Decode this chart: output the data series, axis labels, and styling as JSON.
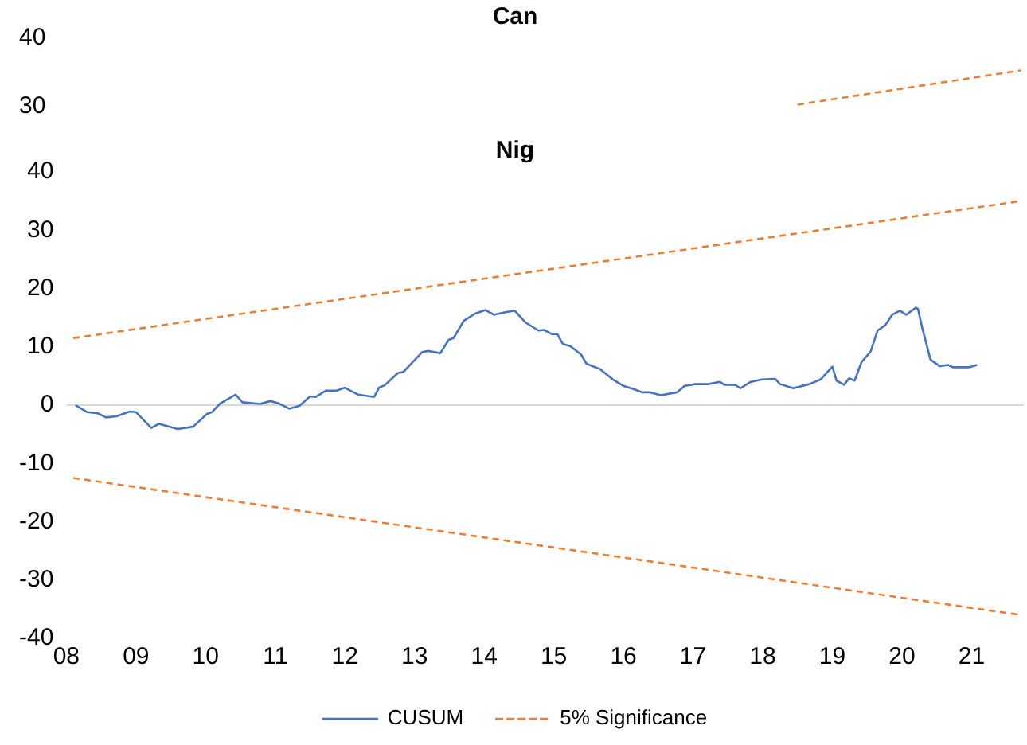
{
  "chart_data": [
    {
      "type": "line",
      "title": "Can",
      "xlim": [
        2008.0,
        2021.75
      ],
      "ylim": [
        30,
        40
      ],
      "yticks": [
        30,
        40
      ],
      "tick_labels": "y",
      "grid": false,
      "legend": false,
      "marker": "none",
      "series": [
        {
          "color": "#ed7d31",
          "line_style": "dashed",
          "x": [
            2018.53,
            2021.71
          ],
          "values": [
            30.3,
            35.3
          ]
        }
      ]
    },
    {
      "type": "line",
      "title": "Nig",
      "xlim": [
        2008.0,
        2021.75
      ],
      "ylim": [
        -40,
        40
      ],
      "yticks": [
        -40,
        -30,
        -20,
        -10,
        0,
        10,
        20,
        30,
        40
      ],
      "xticks": [
        {
          "value": 2008,
          "label": "08"
        },
        {
          "value": 2009,
          "label": "09"
        },
        {
          "value": 2010,
          "label": "10"
        },
        {
          "value": 2011,
          "label": "11"
        },
        {
          "value": 2012,
          "label": "12"
        },
        {
          "value": 2013,
          "label": "13"
        },
        {
          "value": 2014,
          "label": "14"
        },
        {
          "value": 2015,
          "label": "15"
        },
        {
          "value": 2016,
          "label": "16"
        },
        {
          "value": 2017,
          "label": "17"
        },
        {
          "value": 2018,
          "label": "18"
        },
        {
          "value": 2019,
          "label": "19"
        },
        {
          "value": 2020,
          "label": "20"
        },
        {
          "value": 2021,
          "label": "21"
        }
      ],
      "grid": false,
      "legend": "bottom",
      "marker": "none",
      "ref_lines": [
        {
          "axis": "y",
          "value": 0,
          "color": "#d9d9d9"
        }
      ],
      "series": [
        {
          "name": "CUSUM",
          "color": "#4472c4",
          "line_style": "solid",
          "x": [
            2008.13,
            2008.3,
            2008.45,
            2008.57,
            2008.72,
            2008.91,
            2009.0,
            2009.22,
            2009.33,
            2009.6,
            2009.82,
            2010.02,
            2010.09,
            2010.21,
            2010.43,
            2010.53,
            2010.78,
            2010.93,
            2011.05,
            2011.2,
            2011.35,
            2011.5,
            2011.58,
            2011.73,
            2011.88,
            2012.0,
            2012.19,
            2012.42,
            2012.49,
            2012.57,
            2012.76,
            2012.84,
            2013.11,
            2013.2,
            2013.37,
            2013.49,
            2013.56,
            2013.71,
            2013.87,
            2014.02,
            2014.14,
            2014.29,
            2014.44,
            2014.59,
            2014.78,
            2014.86,
            2014.97,
            2015.05,
            2015.13,
            2015.24,
            2015.39,
            2015.47,
            2015.66,
            2015.85,
            2016.0,
            2016.16,
            2016.27,
            2016.38,
            2016.54,
            2016.77,
            2016.88,
            2017.03,
            2017.22,
            2017.38,
            2017.45,
            2017.6,
            2017.68,
            2017.83,
            2017.99,
            2018.18,
            2018.25,
            2018.44,
            2018.67,
            2018.83,
            2019.0,
            2019.06,
            2019.17,
            2019.24,
            2019.32,
            2019.42,
            2019.55,
            2019.65,
            2019.76,
            2019.86,
            2019.97,
            2020.06,
            2020.2,
            2020.23,
            2020.29,
            2020.41,
            2020.54,
            2020.66,
            2020.73,
            2020.96,
            2021.08
          ],
          "values": [
            0,
            -1.2,
            -1.4,
            -2.1,
            -1.9,
            -1.1,
            -1.2,
            -3.9,
            -3.2,
            -4.1,
            -3.7,
            -1.5,
            -1.2,
            0.3,
            1.8,
            0.5,
            0.2,
            0.7,
            0.3,
            -0.6,
            -0.1,
            1.5,
            1.4,
            2.5,
            2.5,
            3,
            1.8,
            1.4,
            3,
            3.4,
            5.5,
            5.7,
            9.1,
            9.3,
            8.9,
            11.2,
            11.5,
            14.5,
            15.7,
            16.3,
            15.5,
            15.9,
            16.2,
            14.2,
            12.8,
            12.9,
            12.2,
            12.2,
            10.5,
            10.1,
            8.7,
            7.1,
            6.2,
            4.4,
            3.3,
            2.7,
            2.2,
            2.2,
            1.7,
            2.2,
            3.3,
            3.6,
            3.6,
            4,
            3.5,
            3.5,
            2.9,
            4,
            4.4,
            4.5,
            3.6,
            2.9,
            3.6,
            4.4,
            6.6,
            4.2,
            3.5,
            4.6,
            4.2,
            7.4,
            9.2,
            12.8,
            13.7,
            15.5,
            16.2,
            15.5,
            16.7,
            16.5,
            13.3,
            7.8,
            6.7,
            6.9,
            6.5,
            6.5,
            6.9
          ]
        },
        {
          "name": "5% Significance",
          "color": "#ed7d31",
          "line_style": "dashed",
          "x": [
            2008.1,
            2021.71
          ],
          "values": [
            11.5,
            35
          ]
        },
        {
          "color": "#ed7d31",
          "line_style": "dashed",
          "x": [
            2008.1,
            2021.71
          ],
          "values": [
            -12.5,
            -36
          ]
        }
      ]
    }
  ]
}
